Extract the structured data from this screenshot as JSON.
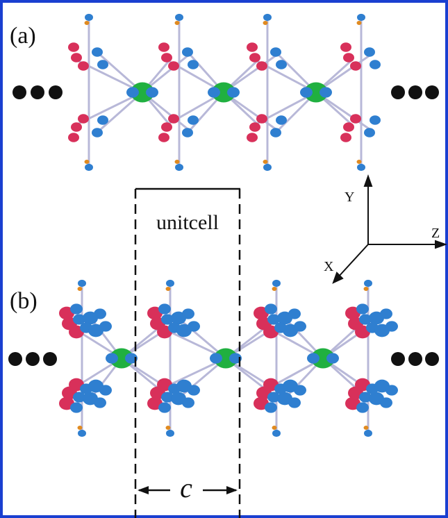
{
  "panels": [
    {
      "label": "(a)"
    },
    {
      "label": "(b)"
    }
  ],
  "unit_cell": {
    "label": "unitcell",
    "axis_label": "c"
  },
  "axes": {
    "y": "Y",
    "z": "Z",
    "x": "X"
  }
}
